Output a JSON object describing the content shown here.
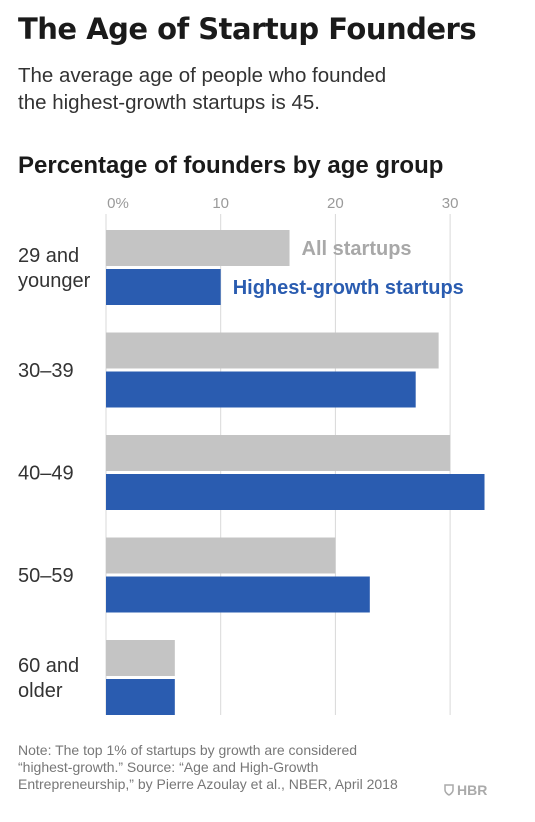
{
  "header": {
    "title": "The Age of Startup Founders",
    "subtitle_lines": [
      "The average age of people who founded",
      "the highest-growth startups is 45."
    ]
  },
  "chart_data": {
    "type": "bar",
    "orientation": "horizontal",
    "title": "Percentage of founders by age group",
    "categories": [
      [
        "29 and",
        "younger"
      ],
      [
        "30–39"
      ],
      [
        "40–49"
      ],
      [
        "50–59"
      ],
      [
        "60 and",
        "older"
      ]
    ],
    "series": [
      {
        "name": "All startups",
        "values": [
          16,
          29,
          30,
          20,
          6
        ],
        "color": "#c4c4c4"
      },
      {
        "name": "Highest-growth startups",
        "values": [
          10,
          27,
          33,
          23,
          6
        ],
        "color": "#2a5cb0"
      }
    ],
    "x_ticks": [
      0,
      10,
      20,
      30
    ],
    "x_tick_labels": [
      "0%",
      "10",
      "20",
      "30"
    ],
    "xlim": [
      0,
      35
    ],
    "grid": true,
    "legend": "inline-top"
  },
  "footer": {
    "note_lines": [
      "Note: The top 1% of startups by growth are considered",
      "“highest-growth.” Source: “Age and High-Growth",
      "Entrepreneurship,” by Pierre Azoulay et al., NBER, April 2018"
    ],
    "logo_text": "HBR",
    "logo_icon": "hbr-shield-icon"
  }
}
